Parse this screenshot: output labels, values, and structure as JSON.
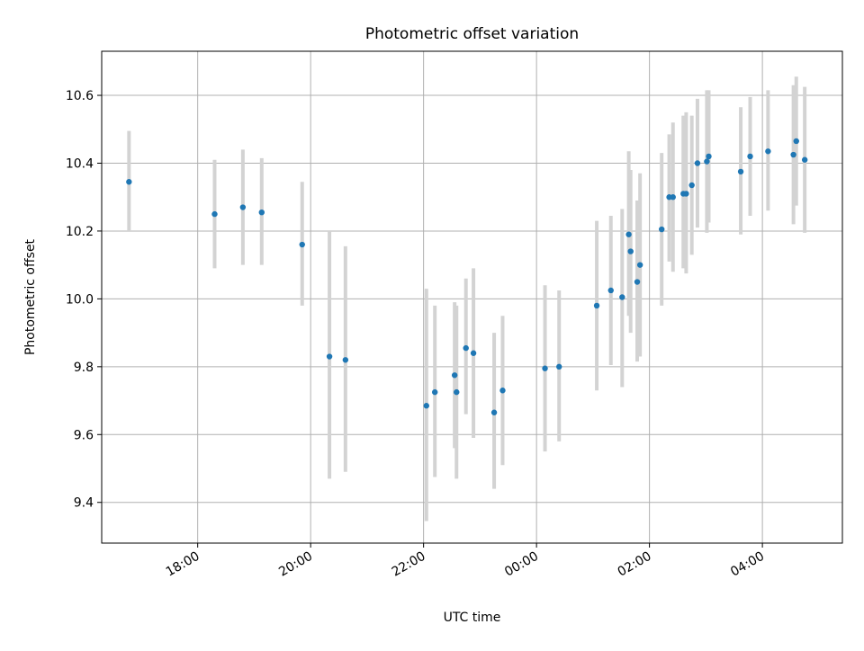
{
  "chart_data": {
    "type": "scatter",
    "title": "Photometric offset variation",
    "xlabel": "UTC time",
    "ylabel": "Photometric offset",
    "x_axis_type": "time",
    "xlim": [
      "16:18",
      "05:25"
    ],
    "ylim": [
      9.28,
      10.73
    ],
    "x_ticks": [
      {
        "value": "18:00",
        "label": "18:00"
      },
      {
        "value": "20:00",
        "label": "20:00"
      },
      {
        "value": "22:00",
        "label": "22:00"
      },
      {
        "value": "00:00",
        "label": "00:00"
      },
      {
        "value": "02:00",
        "label": "02:00"
      },
      {
        "value": "04:00",
        "label": "04:00"
      }
    ],
    "y_ticks": [
      {
        "value": 9.4,
        "label": "9.4"
      },
      {
        "value": 9.6,
        "label": "9.6"
      },
      {
        "value": 9.8,
        "label": "9.8"
      },
      {
        "value": 10.0,
        "label": "10.0"
      },
      {
        "value": 10.2,
        "label": "10.2"
      },
      {
        "value": 10.4,
        "label": "10.4"
      },
      {
        "value": 10.6,
        "label": "10.6"
      }
    ],
    "grid": true,
    "error_bars": true,
    "marker_color": "#1f77b4",
    "errorbar_color": "#d3d3d3",
    "points": [
      {
        "x": "16:47",
        "y": 10.345,
        "ylo": 10.2,
        "yhi": 10.495
      },
      {
        "x": "18:18",
        "y": 10.25,
        "ylo": 10.09,
        "yhi": 10.41
      },
      {
        "x": "18:48",
        "y": 10.27,
        "ylo": 10.1,
        "yhi": 10.44
      },
      {
        "x": "19:08",
        "y": 10.255,
        "ylo": 10.1,
        "yhi": 10.415
      },
      {
        "x": "19:51",
        "y": 10.16,
        "ylo": 9.98,
        "yhi": 10.345
      },
      {
        "x": "20:20",
        "y": 9.83,
        "ylo": 9.47,
        "yhi": 10.2
      },
      {
        "x": "20:37",
        "y": 9.82,
        "ylo": 9.49,
        "yhi": 10.155
      },
      {
        "x": "22:03",
        "y": 9.685,
        "ylo": 9.345,
        "yhi": 10.03
      },
      {
        "x": "22:12",
        "y": 9.725,
        "ylo": 9.475,
        "yhi": 9.98
      },
      {
        "x": "22:33",
        "y": 9.775,
        "ylo": 9.56,
        "yhi": 9.99
      },
      {
        "x": "22:35",
        "y": 9.725,
        "ylo": 9.47,
        "yhi": 9.98
      },
      {
        "x": "22:45",
        "y": 9.855,
        "ylo": 9.66,
        "yhi": 10.06
      },
      {
        "x": "22:53",
        "y": 9.84,
        "ylo": 9.59,
        "yhi": 10.09
      },
      {
        "x": "23:15",
        "y": 9.665,
        "ylo": 9.44,
        "yhi": 9.9
      },
      {
        "x": "23:24",
        "y": 9.73,
        "ylo": 9.51,
        "yhi": 9.95
      },
      {
        "x": "00:09",
        "y": 9.795,
        "ylo": 9.55,
        "yhi": 10.04
      },
      {
        "x": "00:24",
        "y": 9.8,
        "ylo": 9.58,
        "yhi": 10.025
      },
      {
        "x": "01:04",
        "y": 9.98,
        "ylo": 9.73,
        "yhi": 10.23
      },
      {
        "x": "01:19",
        "y": 10.025,
        "ylo": 9.805,
        "yhi": 10.245
      },
      {
        "x": "01:31",
        "y": 10.005,
        "ylo": 9.74,
        "yhi": 10.265
      },
      {
        "x": "01:38",
        "y": 10.19,
        "ylo": 9.95,
        "yhi": 10.435
      },
      {
        "x": "01:40",
        "y": 10.14,
        "ylo": 9.9,
        "yhi": 10.38
      },
      {
        "x": "01:47",
        "y": 10.05,
        "ylo": 9.815,
        "yhi": 10.29
      },
      {
        "x": "01:50",
        "y": 10.1,
        "ylo": 9.83,
        "yhi": 10.37
      },
      {
        "x": "02:13",
        "y": 10.205,
        "ylo": 9.98,
        "yhi": 10.43
      },
      {
        "x": "02:21",
        "y": 10.3,
        "ylo": 10.11,
        "yhi": 10.485
      },
      {
        "x": "02:25",
        "y": 10.3,
        "ylo": 10.08,
        "yhi": 10.52
      },
      {
        "x": "02:36",
        "y": 10.31,
        "ylo": 10.09,
        "yhi": 10.54
      },
      {
        "x": "02:39",
        "y": 10.31,
        "ylo": 10.075,
        "yhi": 10.55
      },
      {
        "x": "02:45",
        "y": 10.335,
        "ylo": 10.13,
        "yhi": 10.54
      },
      {
        "x": "02:51",
        "y": 10.4,
        "ylo": 10.21,
        "yhi": 10.59
      },
      {
        "x": "03:01",
        "y": 10.405,
        "ylo": 10.195,
        "yhi": 10.615
      },
      {
        "x": "03:03",
        "y": 10.42,
        "ylo": 10.225,
        "yhi": 10.615
      },
      {
        "x": "03:37",
        "y": 10.375,
        "ylo": 10.19,
        "yhi": 10.565
      },
      {
        "x": "03:47",
        "y": 10.42,
        "ylo": 10.245,
        "yhi": 10.595
      },
      {
        "x": "04:06",
        "y": 10.435,
        "ylo": 10.26,
        "yhi": 10.615
      },
      {
        "x": "04:33",
        "y": 10.425,
        "ylo": 10.22,
        "yhi": 10.63
      },
      {
        "x": "04:36",
        "y": 10.465,
        "ylo": 10.275,
        "yhi": 10.655
      },
      {
        "x": "04:45",
        "y": 10.41,
        "ylo": 10.195,
        "yhi": 10.625
      }
    ]
  }
}
